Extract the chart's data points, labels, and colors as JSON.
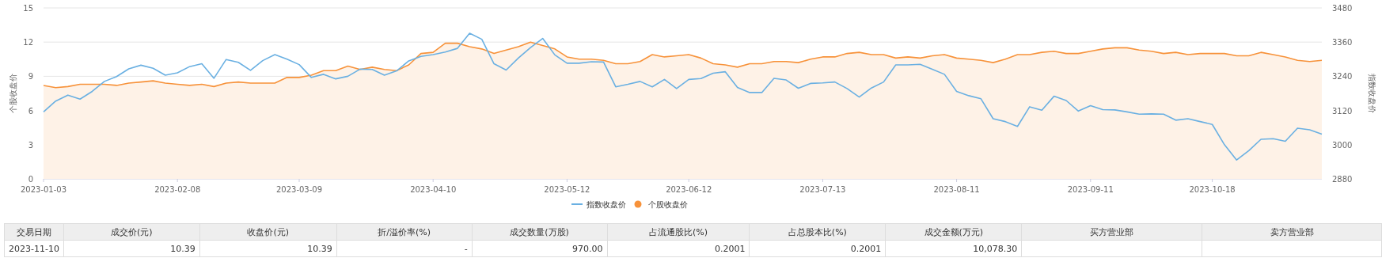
{
  "chart_data": {
    "type": "line",
    "ylabel": "个股收盘价",
    "y2label": "指数收盘价",
    "categories": [
      "2023-01-03",
      null,
      null,
      null,
      null,
      null,
      null,
      null,
      null,
      null,
      null,
      "2023-02-08",
      null,
      null,
      null,
      null,
      null,
      null,
      null,
      null,
      null,
      "2023-03-09",
      null,
      null,
      null,
      null,
      null,
      null,
      null,
      null,
      null,
      null,
      "2023-04-10",
      null,
      null,
      null,
      null,
      null,
      null,
      null,
      null,
      null,
      null,
      "2023-05-12",
      null,
      null,
      null,
      null,
      null,
      null,
      null,
      null,
      null,
      "2023-06-12",
      null,
      null,
      null,
      null,
      null,
      null,
      null,
      null,
      null,
      null,
      "2023-07-13",
      null,
      null,
      null,
      null,
      null,
      null,
      null,
      null,
      null,
      null,
      "2023-08-11",
      null,
      null,
      null,
      null,
      null,
      null,
      null,
      null,
      null,
      null,
      "2023-09-11",
      null,
      null,
      null,
      null,
      null,
      null,
      null,
      null,
      null,
      "2023-10-18",
      null,
      null,
      null,
      null,
      null,
      null,
      null,
      null,
      null
    ],
    "series": [
      {
        "name": "指数收盘价",
        "type": "line",
        "axis": "y2",
        "color": "#6ab0e2",
        "values": [
          3115,
          3153,
          3174,
          3160,
          3187,
          3222,
          3239,
          3266,
          3279,
          3268,
          3244,
          3252,
          3274,
          3284,
          3233,
          3299,
          3289,
          3261,
          3295,
          3316,
          3300,
          3281,
          3236,
          3247,
          3231,
          3240,
          3265,
          3264,
          3244,
          3259,
          3294,
          3310,
          3316,
          3325,
          3338,
          3391,
          3370,
          3284,
          3262,
          3304,
          3341,
          3373,
          3315,
          3286,
          3286,
          3291,
          3290,
          3203,
          3212,
          3222,
          3203,
          3229,
          3197,
          3229,
          3232,
          3251,
          3256,
          3201,
          3183,
          3183,
          3233,
          3227,
          3198,
          3215,
          3217,
          3220,
          3197,
          3167,
          3199,
          3220,
          3280,
          3280,
          3282,
          3265,
          3247,
          3187,
          3172,
          3161,
          3091,
          3081,
          3064,
          3133,
          3121,
          3170,
          3155,
          3118,
          3137,
          3123,
          3122,
          3115,
          3107,
          3108,
          3107,
          3086,
          3091,
          3081,
          3071,
          3000,
          2946,
          2979,
          3019,
          3021,
          3012,
          3058,
          3052,
          3037
        ]
      },
      {
        "name": "个股收盘价",
        "type": "area",
        "color": "#f7923a",
        "values": [
          8.2,
          8.0,
          8.1,
          8.3,
          8.3,
          8.3,
          8.2,
          8.4,
          8.5,
          8.6,
          8.4,
          8.3,
          8.2,
          8.3,
          8.1,
          8.4,
          8.5,
          8.4,
          8.4,
          8.4,
          8.9,
          8.9,
          9.1,
          9.5,
          9.5,
          9.9,
          9.6,
          9.8,
          9.6,
          9.5,
          10.0,
          11.0,
          11.1,
          11.9,
          11.9,
          11.6,
          11.4,
          11.0,
          11.3,
          11.6,
          12.0,
          11.7,
          11.4,
          10.7,
          10.5,
          10.5,
          10.4,
          10.1,
          10.1,
          10.3,
          10.9,
          10.7,
          10.8,
          10.9,
          10.6,
          10.1,
          10.0,
          9.8,
          10.1,
          10.1,
          10.3,
          10.3,
          10.2,
          10.5,
          10.7,
          10.7,
          11.0,
          11.1,
          10.9,
          10.9,
          10.6,
          10.7,
          10.6,
          10.8,
          10.9,
          10.6,
          10.5,
          10.4,
          10.2,
          10.5,
          10.9,
          10.9,
          11.1,
          11.2,
          11.0,
          11.0,
          11.2,
          11.4,
          11.5,
          11.5,
          11.3,
          11.2,
          11.0,
          11.1,
          10.9,
          11.0,
          11.0,
          11.0,
          10.8,
          10.8,
          11.1,
          10.9,
          10.7,
          10.4,
          10.3,
          10.4
        ]
      }
    ],
    "ylim": [
      0,
      15
    ],
    "yticks": [
      0,
      3,
      6,
      9,
      12,
      15
    ],
    "y2lim": [
      2880,
      3480
    ],
    "y2ticks": [
      2880,
      3000,
      3120,
      3240,
      3360,
      3480
    ],
    "grid": "y",
    "legend": "bottom",
    "marker": "none",
    "annotations": [
      "交易日期",
      "成交价(元)",
      "收盘价(元)",
      "折/溢价率(%)",
      "成交数量(万股)",
      "占流通股比(%)",
      "占总股本比(%)",
      "成交金额(万元)",
      "买方营业部",
      "卖方营业部",
      "2023-11-10",
      "10.39",
      "10.39",
      "-",
      "970.00",
      "0.2001",
      "0.2001",
      "10,078.30"
    ]
  }
}
